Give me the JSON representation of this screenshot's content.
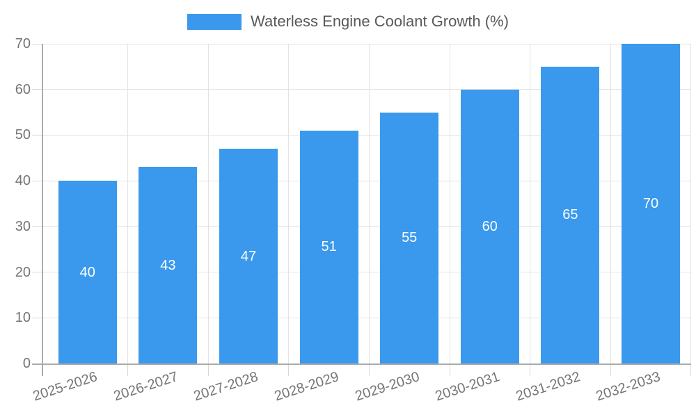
{
  "chart_data": {
    "type": "bar",
    "title": "Waterless Engine Coolant Growth (%)",
    "categories": [
      "2025-2026",
      "2026-2027",
      "2027-2028",
      "2028-2029",
      "2029-2030",
      "2030-2031",
      "2031-2032",
      "2032-2033"
    ],
    "values": [
      40,
      43,
      47,
      51,
      55,
      60,
      65,
      70
    ],
    "yticks": [
      0,
      10,
      20,
      30,
      40,
      50,
      60,
      70
    ],
    "ylim": [
      0,
      70
    ],
    "xlabel": "",
    "ylabel": "",
    "grid": true,
    "legend_position": "top",
    "bar_color": "#3a99ec",
    "value_label_color": "#ffffff",
    "axis_text_color": "#757575",
    "title_color": "#58595b",
    "grid_color": "#e3e3e3",
    "axis_line_color": "#ababab"
  }
}
